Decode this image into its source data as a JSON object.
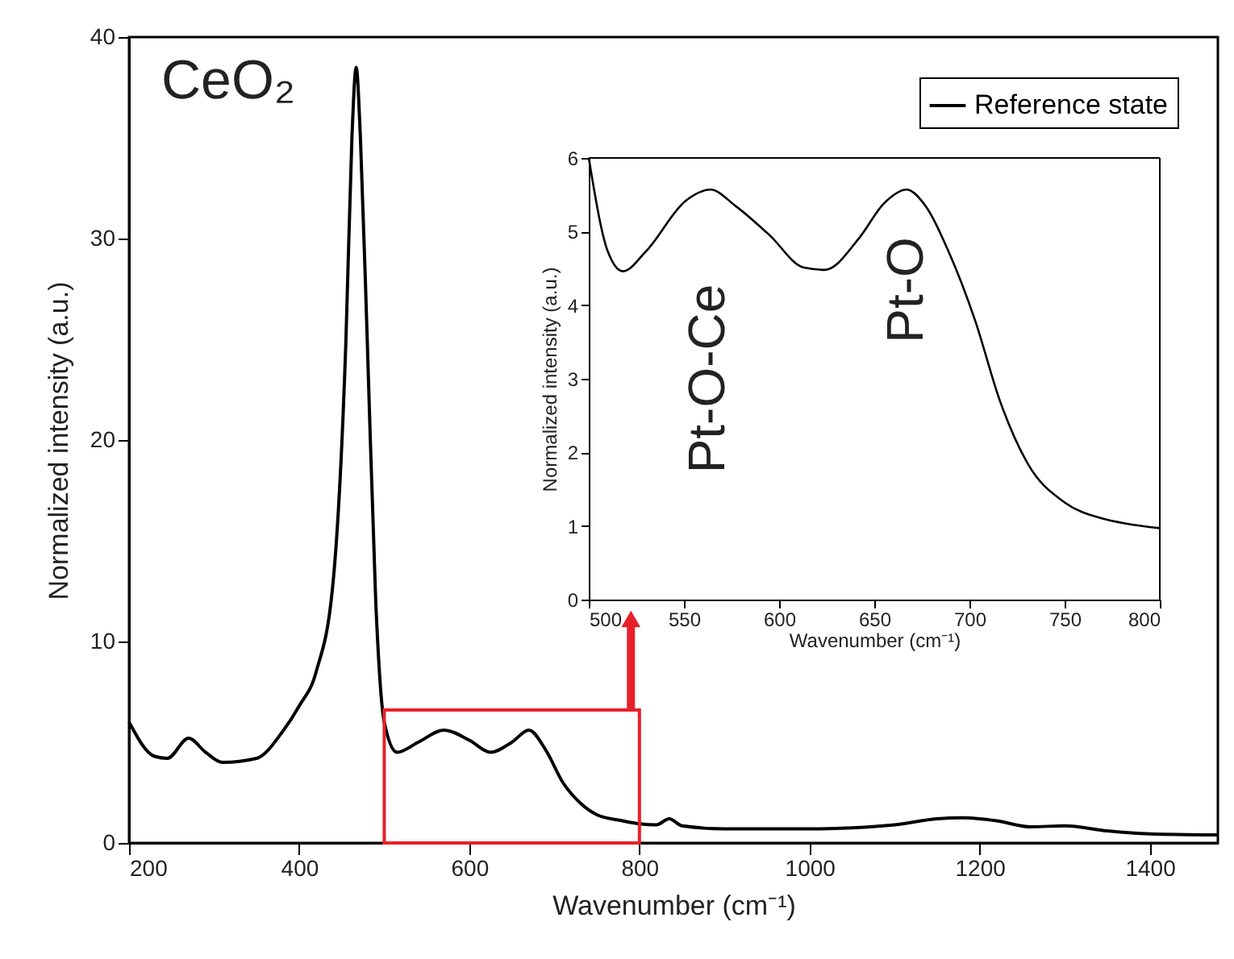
{
  "chart_data": [
    {
      "type": "line",
      "xlabel": "Wavenumber (cm⁻¹)",
      "ylabel": "Normalized intensity (a.u.)",
      "x": [
        200,
        230,
        245,
        270,
        290,
        310,
        350,
        380,
        400,
        420,
        440,
        455,
        462,
        467,
        472,
        480,
        490,
        500,
        515,
        540,
        570,
        600,
        625,
        650,
        670,
        690,
        710,
        730,
        750,
        780,
        800,
        820,
        835,
        850,
        900,
        1000,
        1050,
        1100,
        1150,
        1180,
        1220,
        1260,
        1300,
        1350,
        1400,
        1480
      ],
      "series": [
        {
          "name": "Reference state",
          "color": "#000000",
          "values": [
            6.0,
            4.3,
            4.2,
            5.2,
            4.5,
            4.0,
            4.2,
            5.5,
            6.8,
            8.5,
            13,
            25,
            35,
            38.5,
            35,
            25,
            12,
            6,
            4.5,
            5.0,
            5.6,
            5.1,
            4.5,
            5.0,
            5.6,
            4.6,
            3.0,
            2.0,
            1.4,
            1.1,
            0.95,
            0.9,
            1.2,
            0.85,
            0.7,
            0.7,
            0.75,
            0.9,
            1.2,
            1.25,
            1.1,
            0.8,
            0.85,
            0.6,
            0.45,
            0.4
          ]
        }
      ],
      "xlim": [
        200,
        1480
      ],
      "ylim": [
        0,
        40
      ],
      "xticks": [
        200,
        400,
        600,
        800,
        1000,
        1200,
        1400
      ],
      "yticks": [
        0,
        10,
        20,
        30,
        40
      ],
      "legend": "top right",
      "annotations": [
        "CeO₂"
      ]
    },
    {
      "type": "line",
      "xlabel": "Wavenumber (cm⁻¹)",
      "ylabel": "Normalized intensity (a.u.)",
      "x": [
        500,
        510,
        518,
        530,
        551,
        564,
        577,
        595,
        613,
        624,
        642,
        655,
        667,
        676,
        689,
        703,
        716,
        731,
        750,
        770,
        783,
        800
      ],
      "series": [
        {
          "color": "#000000",
          "values": [
            6.0,
            4.73,
            4.46,
            4.73,
            5.42,
            5.57,
            5.35,
            4.95,
            4.51,
            4.48,
            4.91,
            5.38,
            5.57,
            5.38,
            4.73,
            3.79,
            2.7,
            1.83,
            1.32,
            1.1,
            1.03,
            0.97
          ]
        }
      ],
      "xlim": [
        500,
        800
      ],
      "ylim": [
        0,
        6
      ],
      "xticks": [
        500,
        550,
        600,
        650,
        700,
        750,
        800
      ],
      "yticks": [
        0,
        1,
        2,
        3,
        4,
        5,
        6
      ],
      "annotations": [
        "Pt-O-Ce",
        "Pt-O"
      ]
    }
  ]
}
